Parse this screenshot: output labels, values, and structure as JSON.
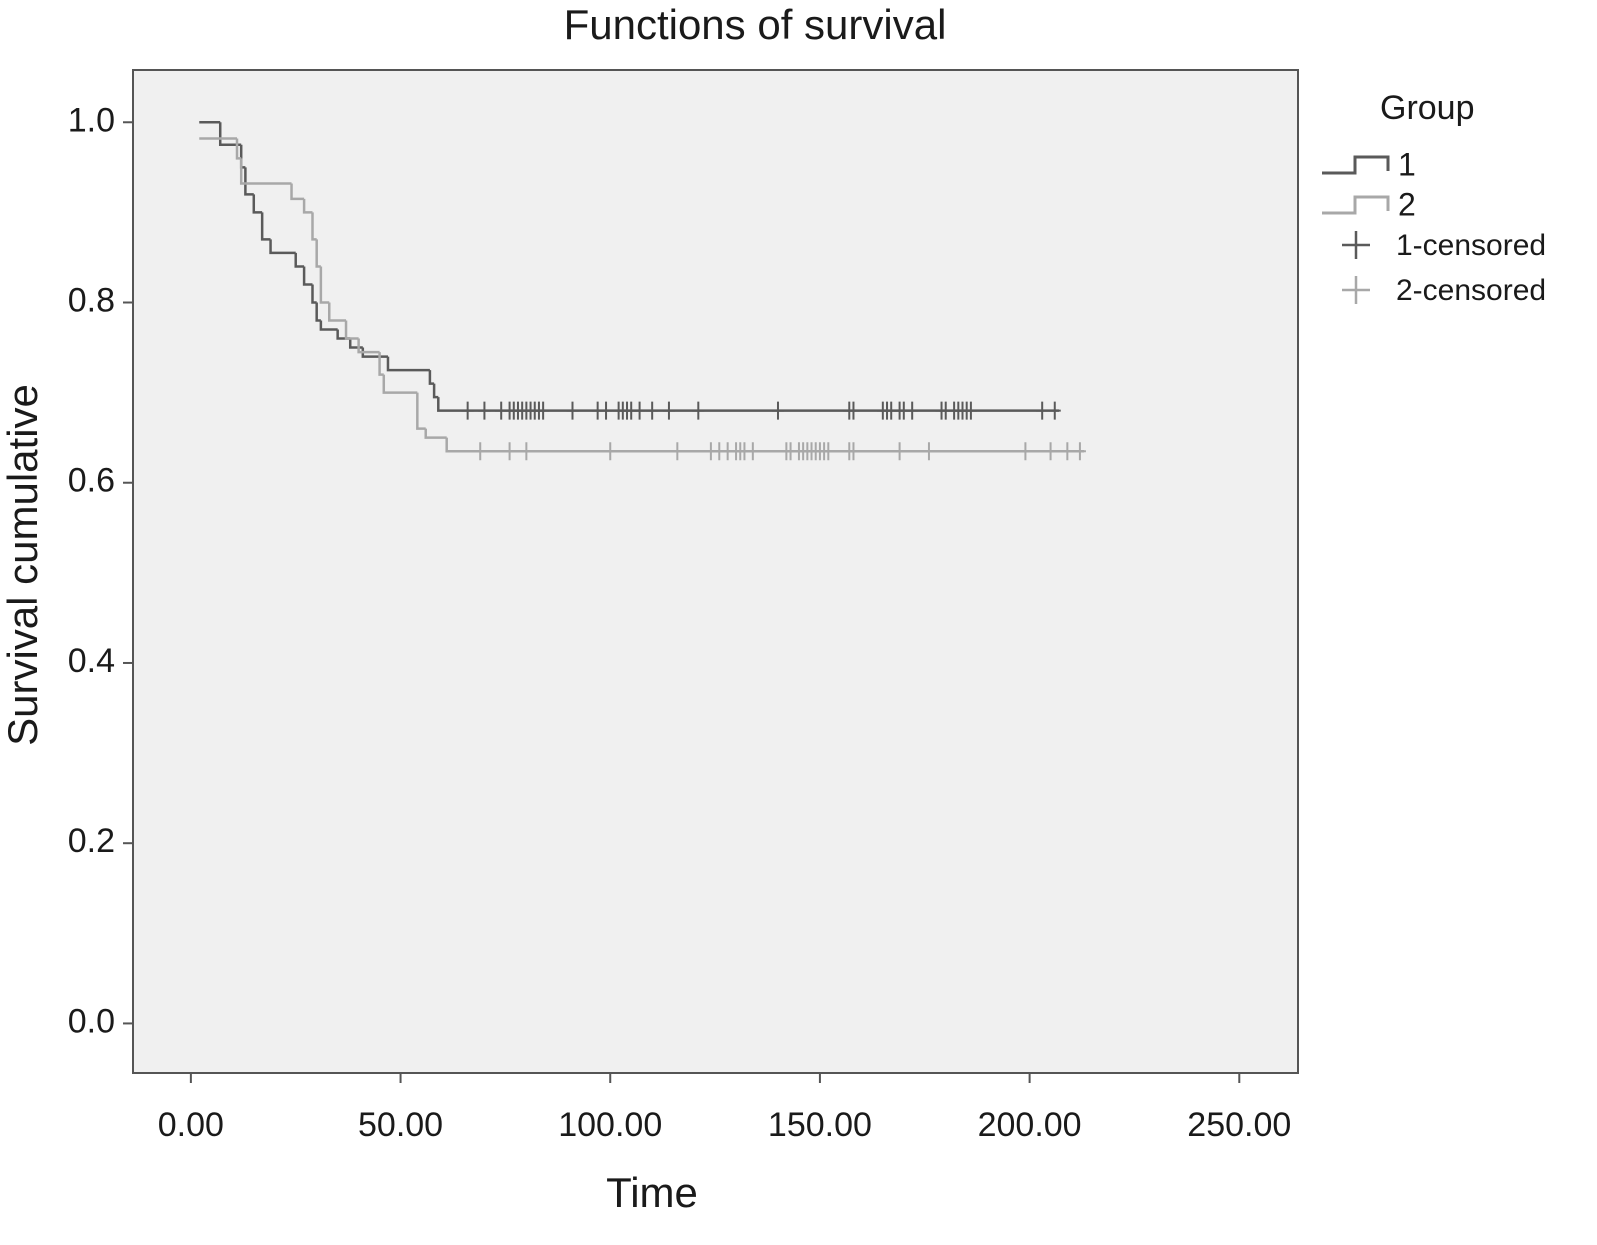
{
  "chart_data": {
    "type": "survival",
    "title": "Functions of survival",
    "x_label": "Time",
    "y_label": "Survival cumulative",
    "legend_title": "Group",
    "xlim": [
      -13.8,
      264
    ],
    "ylim": [
      -0.055,
      1.058
    ],
    "xticks": [
      {
        "value": 0,
        "label": "0.00"
      },
      {
        "value": 50,
        "label": "50.00"
      },
      {
        "value": 100,
        "label": "100.00"
      },
      {
        "value": 150,
        "label": "150.00"
      },
      {
        "value": 200,
        "label": "200.00"
      },
      {
        "value": 250,
        "label": "250.00"
      }
    ],
    "yticks": [
      {
        "value": 0,
        "label": "0.0"
      },
      0.2,
      0.4,
      0.6,
      0.8,
      {
        "value": 1,
        "label": "1.0"
      }
    ],
    "series": [
      {
        "name": "1",
        "mark": "step",
        "color": "#5a5a5a",
        "x": [
          2,
          7,
          12,
          13,
          15,
          17,
          19,
          25,
          27,
          29,
          30,
          31,
          35,
          38,
          41,
          47,
          57,
          58,
          59,
          207
        ],
        "values": [
          1,
          0.975,
          0.95,
          0.92,
          0.9,
          0.87,
          0.855,
          0.84,
          0.82,
          0.8,
          0.78,
          0.77,
          0.76,
          0.75,
          0.74,
          0.725,
          0.71,
          0.695,
          0.68,
          0.68
        ]
      },
      {
        "name": "2",
        "mark": "step",
        "color": "#a8a8a8",
        "x": [
          2,
          11,
          12,
          24,
          27,
          29,
          30,
          31,
          33,
          37,
          40,
          45,
          46,
          54,
          56,
          61,
          213
        ],
        "values": [
          0.982,
          0.96,
          0.932,
          0.915,
          0.9,
          0.87,
          0.84,
          0.8,
          0.78,
          0.76,
          0.745,
          0.72,
          0.7,
          0.66,
          0.65,
          0.635,
          0.635
        ]
      },
      {
        "name": "1-censored",
        "mark": "plus",
        "color": "#5a5a5a",
        "x": [
          66,
          70,
          74,
          76,
          77,
          78,
          79,
          80,
          81,
          82,
          83,
          84,
          91,
          97,
          99,
          102,
          103,
          104,
          105,
          107,
          110,
          114,
          121,
          140,
          157,
          158,
          165,
          166,
          167,
          169,
          170,
          172,
          179,
          180,
          182,
          183,
          184,
          185,
          186,
          203,
          206
        ],
        "values": [
          0.68,
          0.68,
          0.68,
          0.68,
          0.68,
          0.68,
          0.68,
          0.68,
          0.68,
          0.68,
          0.68,
          0.68,
          0.68,
          0.68,
          0.68,
          0.68,
          0.68,
          0.68,
          0.68,
          0.68,
          0.68,
          0.68,
          0.68,
          0.68,
          0.68,
          0.68,
          0.68,
          0.68,
          0.68,
          0.68,
          0.68,
          0.68,
          0.68,
          0.68,
          0.68,
          0.68,
          0.68,
          0.68,
          0.68,
          0.68,
          0.68
        ]
      },
      {
        "name": "2-censored",
        "mark": "plus",
        "color": "#a8a8a8",
        "x": [
          69,
          76,
          80,
          100,
          116,
          124,
          126,
          128,
          130,
          131,
          132,
          134,
          142,
          143,
          145,
          146,
          147,
          148,
          149,
          150,
          151,
          152,
          157,
          158,
          169,
          176,
          199,
          205,
          209,
          212
        ],
        "values": [
          0.635,
          0.635,
          0.635,
          0.635,
          0.635,
          0.635,
          0.635,
          0.635,
          0.635,
          0.635,
          0.635,
          0.635,
          0.635,
          0.635,
          0.635,
          0.635,
          0.635,
          0.635,
          0.635,
          0.635,
          0.635,
          0.635,
          0.635,
          0.635,
          0.635,
          0.635,
          0.635,
          0.635,
          0.635,
          0.635
        ]
      }
    ]
  }
}
